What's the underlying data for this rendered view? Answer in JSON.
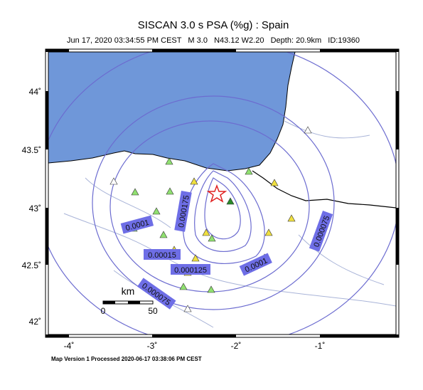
{
  "header": {
    "title": "SISCAN 3.0 s PSA (%g) : Spain",
    "subtitle": "Jun 17, 2020 03:34:55 PM CEST   M 3.0   N43.12 W2.20   Depth: 20.9km   ID:19360"
  },
  "axes": {
    "lat_labels": [
      "44˚",
      "43.5˚",
      "43˚",
      "42.5˚",
      "42˚"
    ],
    "lon_labels": [
      "-4˚",
      "-3˚",
      "-2˚",
      "-1˚"
    ]
  },
  "contour_labels": [
    "0.0001",
    "0.000175",
    "0.00015",
    "0.000125",
    "0.0001",
    "0.000075",
    "0.000075"
  ],
  "scale_bar": {
    "unit": "km",
    "start": "0",
    "end": "50"
  },
  "footer": "Map Version 1 Processed 2020-06-17 03:38:06 PM CEST"
}
